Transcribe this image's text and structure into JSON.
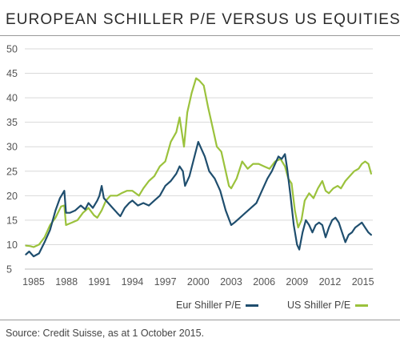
{
  "title": "EUROPEAN SCHILLER P/E VERSUS US EQUITIES",
  "source": "Source: Credit Suisse, as at 1 October 2015.",
  "colors": {
    "eur": "#1f4e6e",
    "us": "#9bc23c",
    "grid": "#d9d9d9",
    "axis": "#bdbdbd"
  },
  "chart_data": {
    "type": "line",
    "title": "EUROPEAN SCHILLER P/E VERSUS US EQUITIES",
    "xlabel": "",
    "ylabel": "",
    "xlim": [
      1984.2,
      2015.9
    ],
    "ylim": [
      5,
      50
    ],
    "yticks": [
      5,
      10,
      15,
      20,
      25,
      30,
      35,
      40,
      45,
      50
    ],
    "xticks": [
      1985,
      1988,
      1991,
      1994,
      1997,
      2000,
      2003,
      2006,
      2009,
      2012,
      2015
    ],
    "grid": "horizontal",
    "legend": "bottom-right",
    "series": [
      {
        "name": "Eur Shiller P/E",
        "color": "#1f4e6e",
        "points": [
          [
            1984.3,
            8.0
          ],
          [
            1984.6,
            8.6
          ],
          [
            1985.0,
            7.6
          ],
          [
            1985.5,
            8.2
          ],
          [
            1986.0,
            10.5
          ],
          [
            1986.5,
            13.0
          ],
          [
            1987.0,
            17.0
          ],
          [
            1987.4,
            19.5
          ],
          [
            1987.8,
            21.0
          ],
          [
            1987.95,
            16.5
          ],
          [
            1988.3,
            16.5
          ],
          [
            1988.8,
            17.0
          ],
          [
            1989.3,
            18.0
          ],
          [
            1989.7,
            17.2
          ],
          [
            1990.0,
            18.5
          ],
          [
            1990.4,
            17.5
          ],
          [
            1990.8,
            19.0
          ],
          [
            1991.0,
            20.0
          ],
          [
            1991.2,
            22.0
          ],
          [
            1991.4,
            19.5
          ],
          [
            1991.8,
            18.5
          ],
          [
            1992.2,
            17.5
          ],
          [
            1992.6,
            16.5
          ],
          [
            1992.9,
            15.8
          ],
          [
            1993.3,
            17.5
          ],
          [
            1993.7,
            18.5
          ],
          [
            1994.0,
            19.0
          ],
          [
            1994.5,
            18.0
          ],
          [
            1995.0,
            18.5
          ],
          [
            1995.5,
            18.0
          ],
          [
            1996.0,
            19.0
          ],
          [
            1996.5,
            20.0
          ],
          [
            1997.0,
            22.0
          ],
          [
            1997.5,
            23.0
          ],
          [
            1998.0,
            24.5
          ],
          [
            1998.3,
            26.0
          ],
          [
            1998.6,
            25.0
          ],
          [
            1998.8,
            22.0
          ],
          [
            1999.2,
            24.0
          ],
          [
            1999.6,
            27.5
          ],
          [
            2000.0,
            31.0
          ],
          [
            2000.3,
            29.5
          ],
          [
            2000.6,
            28.0
          ],
          [
            2001.0,
            25.0
          ],
          [
            2001.5,
            23.5
          ],
          [
            2002.0,
            21.0
          ],
          [
            2002.5,
            17.0
          ],
          [
            2003.0,
            14.0
          ],
          [
            2003.3,
            14.5
          ],
          [
            2003.8,
            15.5
          ],
          [
            2004.3,
            16.5
          ],
          [
            2004.8,
            17.5
          ],
          [
            2005.3,
            18.5
          ],
          [
            2005.8,
            21.0
          ],
          [
            2006.3,
            23.5
          ],
          [
            2006.7,
            25.0
          ],
          [
            2007.0,
            26.5
          ],
          [
            2007.3,
            28.0
          ],
          [
            2007.6,
            27.5
          ],
          [
            2007.9,
            28.5
          ],
          [
            2008.1,
            25.5
          ],
          [
            2008.4,
            20.0
          ],
          [
            2008.7,
            14.0
          ],
          [
            2009.0,
            10.0
          ],
          [
            2009.2,
            9.0
          ],
          [
            2009.5,
            12.5
          ],
          [
            2009.8,
            15.0
          ],
          [
            2010.1,
            14.0
          ],
          [
            2010.4,
            12.5
          ],
          [
            2010.7,
            14.0
          ],
          [
            2011.0,
            14.5
          ],
          [
            2011.3,
            14.0
          ],
          [
            2011.6,
            11.5
          ],
          [
            2011.9,
            13.5
          ],
          [
            2012.2,
            15.0
          ],
          [
            2012.5,
            15.5
          ],
          [
            2012.8,
            14.5
          ],
          [
            2013.1,
            12.5
          ],
          [
            2013.4,
            10.5
          ],
          [
            2013.7,
            12.0
          ],
          [
            2014.0,
            12.5
          ],
          [
            2014.3,
            13.5
          ],
          [
            2014.6,
            14.0
          ],
          [
            2014.9,
            14.5
          ],
          [
            2015.2,
            13.5
          ],
          [
            2015.5,
            12.5
          ],
          [
            2015.75,
            12.0
          ]
        ]
      },
      {
        "name": "US Shiller P/E",
        "color": "#9bc23c",
        "points": [
          [
            1984.3,
            9.8
          ],
          [
            1984.7,
            9.7
          ],
          [
            1985.0,
            9.5
          ],
          [
            1985.5,
            10.0
          ],
          [
            1986.0,
            11.5
          ],
          [
            1986.5,
            14.0
          ],
          [
            1987.0,
            15.5
          ],
          [
            1987.5,
            17.8
          ],
          [
            1987.8,
            18.0
          ],
          [
            1987.95,
            14.0
          ],
          [
            1988.5,
            14.5
          ],
          [
            1989.0,
            15.0
          ],
          [
            1989.5,
            16.5
          ],
          [
            1990.0,
            17.5
          ],
          [
            1990.5,
            16.0
          ],
          [
            1990.8,
            15.5
          ],
          [
            1991.2,
            17.0
          ],
          [
            1991.6,
            19.0
          ],
          [
            1992.0,
            20.0
          ],
          [
            1992.6,
            20.0
          ],
          [
            1993.0,
            20.5
          ],
          [
            1993.5,
            21.0
          ],
          [
            1994.0,
            21.0
          ],
          [
            1994.6,
            20.0
          ],
          [
            1995.0,
            21.5
          ],
          [
            1995.5,
            23.0
          ],
          [
            1996.0,
            24.0
          ],
          [
            1996.5,
            26.0
          ],
          [
            1997.0,
            27.0
          ],
          [
            1997.5,
            31.0
          ],
          [
            1998.0,
            33.0
          ],
          [
            1998.3,
            36.0
          ],
          [
            1998.7,
            30.0
          ],
          [
            1999.0,
            37.0
          ],
          [
            1999.4,
            41.0
          ],
          [
            1999.8,
            44.0
          ],
          [
            2000.1,
            43.5
          ],
          [
            2000.5,
            42.5
          ],
          [
            2000.9,
            38.0
          ],
          [
            2001.3,
            34.0
          ],
          [
            2001.7,
            30.0
          ],
          [
            2002.1,
            29.0
          ],
          [
            2002.5,
            25.0
          ],
          [
            2002.8,
            22.0
          ],
          [
            2003.0,
            21.5
          ],
          [
            2003.5,
            23.5
          ],
          [
            2004.0,
            27.0
          ],
          [
            2004.5,
            25.5
          ],
          [
            2005.0,
            26.5
          ],
          [
            2005.5,
            26.5
          ],
          [
            2006.0,
            26.0
          ],
          [
            2006.5,
            25.5
          ],
          [
            2007.0,
            27.0
          ],
          [
            2007.5,
            27.5
          ],
          [
            2007.9,
            26.0
          ],
          [
            2008.2,
            23.5
          ],
          [
            2008.5,
            22.5
          ],
          [
            2008.8,
            17.0
          ],
          [
            2009.1,
            13.5
          ],
          [
            2009.4,
            15.0
          ],
          [
            2009.7,
            19.0
          ],
          [
            2010.1,
            20.5
          ],
          [
            2010.5,
            19.5
          ],
          [
            2010.9,
            21.5
          ],
          [
            2011.3,
            23.0
          ],
          [
            2011.6,
            21.0
          ],
          [
            2011.9,
            20.5
          ],
          [
            2012.3,
            21.5
          ],
          [
            2012.7,
            22.0
          ],
          [
            2013.0,
            21.5
          ],
          [
            2013.4,
            23.0
          ],
          [
            2013.8,
            24.0
          ],
          [
            2014.2,
            25.0
          ],
          [
            2014.6,
            25.5
          ],
          [
            2014.9,
            26.5
          ],
          [
            2015.2,
            27.0
          ],
          [
            2015.5,
            26.5
          ],
          [
            2015.75,
            24.5
          ]
        ]
      }
    ]
  }
}
